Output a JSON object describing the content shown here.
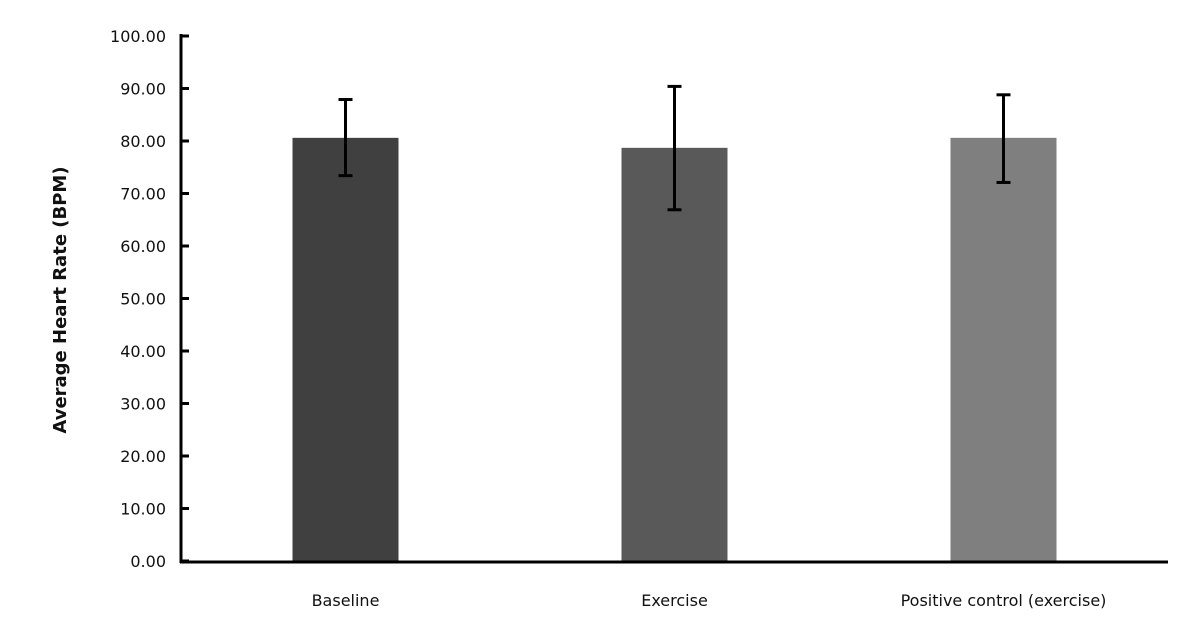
{
  "chart_data": {
    "type": "bar",
    "title": "",
    "xlabel": "",
    "ylabel": "Average Heart Rate (BPM)",
    "categories": [
      "Baseline",
      "Exercise",
      "Positive control (exercise)"
    ],
    "values": [
      80.6,
      78.7,
      80.6
    ],
    "error_upper": [
      87.9,
      90.4,
      88.8
    ],
    "error_lower": [
      73.4,
      66.9,
      72.1
    ],
    "colors": [
      "#404040",
      "#595959",
      "#7f7f7f"
    ],
    "ylim": [
      0,
      100
    ],
    "yticks": [
      "0.00",
      "10.00",
      "20.00",
      "30.00",
      "40.00",
      "50.00",
      "60.00",
      "70.00",
      "80.00",
      "90.00",
      "100.00"
    ],
    "grid": false,
    "legend": "none"
  }
}
